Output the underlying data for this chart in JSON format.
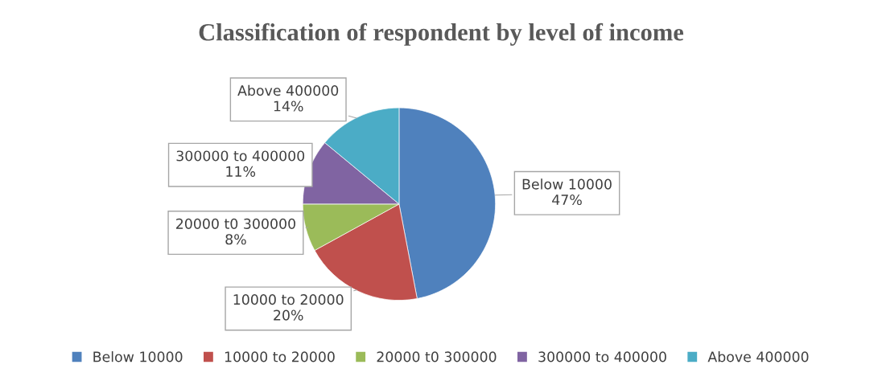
{
  "chart_data": {
    "type": "pie",
    "title": "Classification of respondent by level of income",
    "categories": [
      "Below 10000",
      "10000 to 20000",
      "20000 t0 300000",
      "300000 to 400000",
      "Above 400000"
    ],
    "values": [
      47,
      20,
      8,
      11,
      14
    ],
    "value_labels": [
      "47%",
      "20%",
      "8%",
      "11%",
      "14%"
    ],
    "colors": [
      "#4f81bd",
      "#c0504d",
      "#9bbb59",
      "#8064a2",
      "#4bacc6"
    ],
    "legend": "bottom"
  }
}
